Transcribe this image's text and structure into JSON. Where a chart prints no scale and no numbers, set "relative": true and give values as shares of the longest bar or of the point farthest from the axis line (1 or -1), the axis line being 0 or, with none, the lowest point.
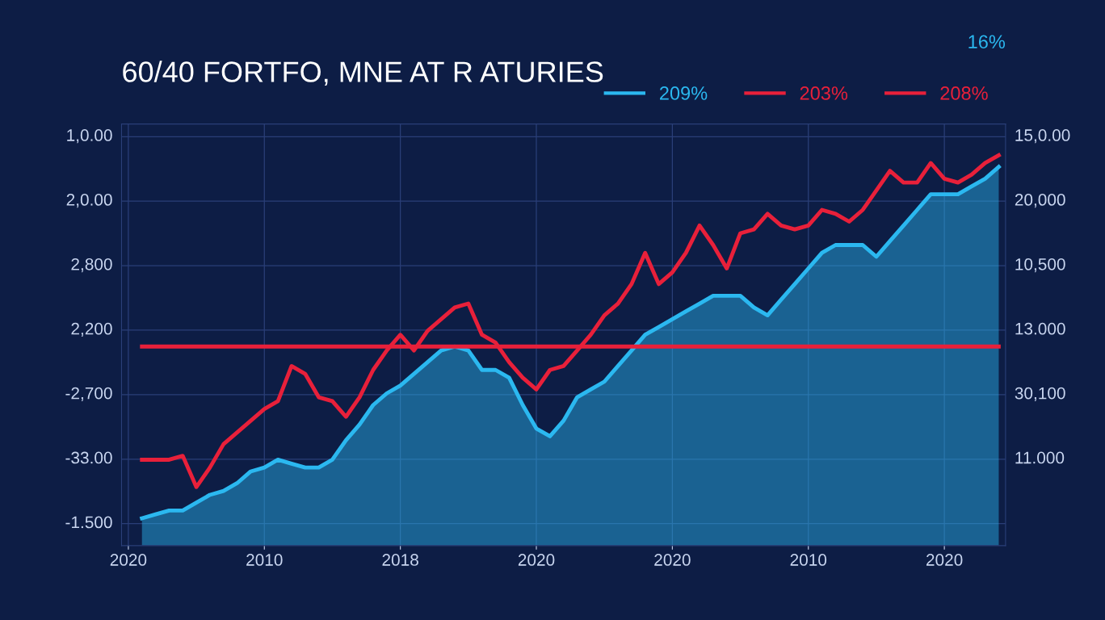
{
  "chart_data": {
    "type": "line",
    "title": "60/40 FORTFO, MNE AT R ATURIES",
    "relative": true,
    "categories": [
      "2020",
      null,
      null,
      null,
      null,
      null,
      null,
      null,
      null,
      null,
      "2010",
      null,
      null,
      null,
      null,
      null,
      null,
      null,
      null,
      null,
      "2018",
      null,
      null,
      null,
      null,
      null,
      null,
      null,
      null,
      null,
      "2020",
      null,
      null,
      null,
      null,
      null,
      null,
      null,
      null,
      null,
      "2020",
      null,
      null,
      null,
      null,
      null,
      null,
      null,
      null,
      null,
      "2010",
      null,
      null,
      null,
      null,
      null,
      null,
      null,
      null,
      null,
      "2020",
      null,
      null,
      null,
      null
    ],
    "grid": true,
    "legend": "top right",
    "series": [
      {
        "name": "209%",
        "type": "area",
        "color": "#2bb8f0",
        "values": [
          null,
          0.07,
          0.08,
          0.09,
          0.09,
          0.11,
          0.13,
          0.14,
          0.16,
          0.19,
          0.2,
          0.22,
          0.21,
          0.2,
          0.2,
          0.22,
          0.27,
          0.31,
          0.36,
          0.39,
          0.41,
          0.44,
          0.47,
          0.5,
          0.51,
          0.5,
          0.45,
          0.45,
          0.43,
          0.36,
          0.3,
          0.28,
          0.32,
          0.38,
          0.4,
          0.42,
          0.46,
          0.5,
          0.54,
          0.56,
          0.58,
          0.6,
          0.62,
          0.64,
          0.64,
          0.64,
          0.61,
          0.59,
          0.63,
          0.67,
          0.71,
          0.75,
          0.77,
          0.77,
          0.77,
          0.74,
          0.78,
          0.82,
          0.86,
          0.9,
          0.9,
          0.9,
          0.92,
          0.94,
          0.97
        ]
      },
      {
        "name": "203%",
        "color": "#e8203a",
        "values": [
          null,
          0.22,
          0.22,
          0.22,
          0.23,
          0.15,
          0.2,
          0.26,
          0.29,
          0.32,
          0.35,
          0.37,
          0.46,
          0.44,
          0.38,
          0.37,
          0.33,
          0.38,
          0.45,
          0.5,
          0.54,
          0.5,
          0.55,
          0.58,
          0.61,
          0.62,
          0.54,
          0.52,
          0.47,
          0.43,
          0.4,
          0.45,
          0.46,
          0.5,
          0.54,
          0.59,
          0.62,
          0.67,
          0.75,
          0.67,
          0.7,
          0.75,
          0.82,
          0.77,
          0.71,
          0.8,
          0.81,
          0.85,
          0.82,
          0.81,
          0.82,
          0.86,
          0.85,
          0.83,
          0.86,
          0.91,
          0.96,
          0.93,
          0.93,
          0.98,
          0.94,
          0.93,
          0.95,
          0.98,
          1.0
        ]
      },
      {
        "name": "208%",
        "color": "#e8203a",
        "values": [
          null,
          0.51,
          0.51,
          0.51,
          0.51,
          0.51,
          0.51,
          0.51,
          0.51,
          0.51,
          0.51,
          0.51,
          0.51,
          0.51,
          0.51,
          0.51,
          0.51,
          0.51,
          0.51,
          0.51,
          0.51,
          0.51,
          0.51,
          0.51,
          0.51,
          0.51,
          0.51,
          0.51,
          0.51,
          0.51,
          0.51,
          0.51,
          0.51,
          0.51,
          0.51,
          0.51,
          0.51,
          0.51,
          0.51,
          0.51,
          0.51,
          0.51,
          0.51,
          0.51,
          0.51,
          0.51,
          0.51,
          0.51,
          0.51,
          0.51,
          0.51,
          0.51,
          0.51,
          0.51,
          0.51,
          0.51,
          0.51,
          0.51,
          0.51,
          0.51,
          0.51,
          0.51,
          0.51,
          0.51,
          0.51
        ]
      }
    ],
    "annotations": [
      "1,0.00",
      "2,0.00",
      "2,800",
      "2,200",
      "-2,700",
      "-33.00",
      "-1.500",
      "15,0.00",
      "20,000",
      "10,500",
      "13.000",
      "30,100",
      "11.000",
      "16%"
    ]
  }
}
